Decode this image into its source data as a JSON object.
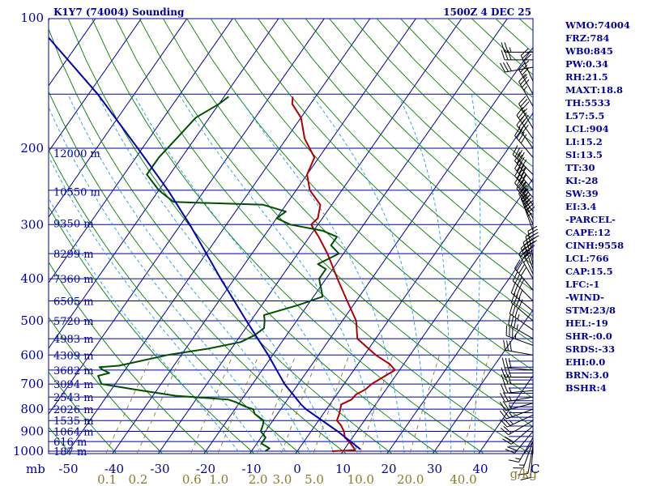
{
  "header": {
    "left_title": "K1Y7 (74004) Sounding",
    "right_title": "1500Z  4 DEC 25"
  },
  "axis": {
    "pressure_unit": "mb",
    "mixing_ratio_unit": "g/kg",
    "temperature_end_label": "C"
  },
  "colors": {
    "frame": "#0000a0",
    "isotherm_isobar": "#0000a0",
    "dry_adiabat": "#008000",
    "moist_adiabat": "#1aa0d8",
    "mixing_ratio": "#8b7a2a",
    "temperature": "#b00000",
    "dewpoint": "#005000",
    "parcel": "#0000b0",
    "wind_barb": "#000000"
  },
  "indices": [
    "WMO:74004",
    "FRZ:784",
    "WB0:845",
    "PW:0.34",
    "RH:21.5",
    "MAXT:18.8",
    "TH:5533",
    "L57:5.5",
    "LCL:904",
    "LI:15.2",
    "SI:13.5",
    "TT:30",
    "KI:-28",
    "SW:39",
    "EI:3.4",
    "-PARCEL-",
    "CAPE:12",
    "CINH:9558",
    "LCL:766",
    "CAP:15.5",
    "LFC:-1",
    "-WIND-",
    "STM:23/8",
    "HEL:-19",
    "SHR-:0.0",
    "SRDS:-33",
    "EHI:0.0",
    "BRN:3.0",
    "BSHR:4"
  ],
  "chart_data": {
    "type": "line",
    "title": "K1Y7 (74004) Sounding",
    "subtitle": "1500Z  4 DEC 25",
    "xlabel": "C",
    "ylabel": "mb",
    "x_axis": "temperature (C), skewed",
    "y_axis": "pressure (mb), log scale",
    "xlim": [
      -50,
      50
    ],
    "ylim": [
      1000,
      100
    ],
    "grid": true,
    "pressure_ticks": [
      100,
      200,
      300,
      400,
      500,
      600,
      700,
      800,
      900,
      1000
    ],
    "temperature_ticks": [
      -50,
      -40,
      -30,
      -20,
      -10,
      0,
      10,
      20,
      30,
      40
    ],
    "temperature_tick_labels": [
      "-50",
      "-40",
      "-30",
      "-20",
      "-10",
      "0",
      "10",
      "20",
      "30",
      "40"
    ],
    "mixing_ratio_values": [
      0.1,
      0.2,
      0.6,
      1.0,
      2.0,
      3.0,
      5.0,
      10.0,
      20.0,
      40.0
    ],
    "mixing_ratio_labels": [
      "0.1",
      "0.2",
      "0.6",
      "1.0",
      "2.0",
      "3.0",
      "5.0",
      "10.0",
      "20.0",
      "40.0"
    ],
    "height_levels": [
      {
        "p": 205,
        "label": "12000 m"
      },
      {
        "p": 252,
        "label": "10550 m"
      },
      {
        "p": 298,
        "label": "9350 m"
      },
      {
        "p": 350,
        "label": "8299 m"
      },
      {
        "p": 400,
        "label": "7360 m"
      },
      {
        "p": 450,
        "label": "6505 m"
      },
      {
        "p": 500,
        "label": "5720 m"
      },
      {
        "p": 550,
        "label": "4983 m"
      },
      {
        "p": 600,
        "label": "4309 m"
      },
      {
        "p": 650,
        "label": "3682 m"
      },
      {
        "p": 700,
        "label": "3094 m"
      },
      {
        "p": 750,
        "label": "2543 m"
      },
      {
        "p": 800,
        "label": "2026 m"
      },
      {
        "p": 850,
        "label": "1535 m"
      },
      {
        "p": 900,
        "label": "1064 m"
      },
      {
        "p": 950,
        "label": "616 m"
      },
      {
        "p": 1000,
        "label": "187 m"
      }
    ],
    "series": [
      {
        "key": "temperature",
        "points": [
          {
            "p": 1000,
            "t": 7.6
          },
          {
            "p": 995,
            "t": 12.5
          },
          {
            "p": 985,
            "t": 12.0
          },
          {
            "p": 960,
            "t": 10.5
          },
          {
            "p": 930,
            "t": 8.3
          },
          {
            "p": 900,
            "t": 7.2
          },
          {
            "p": 870,
            "t": 5.5
          },
          {
            "p": 850,
            "t": 4.0
          },
          {
            "p": 820,
            "t": 3.5
          },
          {
            "p": 800,
            "t": 3.0
          },
          {
            "p": 780,
            "t": 2.5
          },
          {
            "p": 760,
            "t": 4.0
          },
          {
            "p": 740,
            "t": 4.2
          },
          {
            "p": 720,
            "t": 5.5
          },
          {
            "p": 700,
            "t": 6.0
          },
          {
            "p": 650,
            "t": 9.0
          },
          {
            "p": 630,
            "t": 7.0
          },
          {
            "p": 600,
            "t": 2.5
          },
          {
            "p": 550,
            "t": -4.0
          },
          {
            "p": 500,
            "t": -7.0
          },
          {
            "p": 450,
            "t": -12.0
          },
          {
            "p": 400,
            "t": -17.5
          },
          {
            "p": 350,
            "t": -23.5
          },
          {
            "p": 320,
            "t": -28.0
          },
          {
            "p": 300,
            "t": -31.5
          },
          {
            "p": 290,
            "t": -31.0
          },
          {
            "p": 270,
            "t": -32.5
          },
          {
            "p": 250,
            "t": -37.0
          },
          {
            "p": 230,
            "t": -40.0
          },
          {
            "p": 210,
            "t": -41.0
          },
          {
            "p": 190,
            "t": -46.0
          },
          {
            "p": 170,
            "t": -50.0
          },
          {
            "p": 158,
            "t": -54.0
          },
          {
            "p": 152,
            "t": -55.0
          }
        ]
      },
      {
        "key": "dewpoint",
        "points": [
          {
            "p": 1000,
            "t": -7.0
          },
          {
            "p": 985,
            "t": -6.5
          },
          {
            "p": 960,
            "t": -9.0
          },
          {
            "p": 930,
            "t": -9.0
          },
          {
            "p": 900,
            "t": -11.0
          },
          {
            "p": 870,
            "t": -11.5
          },
          {
            "p": 850,
            "t": -12.0
          },
          {
            "p": 820,
            "t": -15.0
          },
          {
            "p": 800,
            "t": -16.0
          },
          {
            "p": 790,
            "t": -18.0
          },
          {
            "p": 770,
            "t": -21.0
          },
          {
            "p": 760,
            "t": -23.0
          },
          {
            "p": 745,
            "t": -35.0
          },
          {
            "p": 720,
            "t": -45.0
          },
          {
            "p": 700,
            "t": -53.0
          },
          {
            "p": 685,
            "t": -54.0
          },
          {
            "p": 670,
            "t": -55.0
          },
          {
            "p": 660,
            "t": -53.0
          },
          {
            "p": 648,
            "t": -55.0
          },
          {
            "p": 640,
            "t": -56.0
          },
          {
            "p": 635,
            "t": -52.0
          },
          {
            "p": 600,
            "t": -43.0
          },
          {
            "p": 580,
            "t": -35.0
          },
          {
            "p": 560,
            "t": -29.0
          },
          {
            "p": 540,
            "t": -27.0
          },
          {
            "p": 520,
            "t": -26.0
          },
          {
            "p": 500,
            "t": -27.0
          },
          {
            "p": 485,
            "t": -28.0
          },
          {
            "p": 460,
            "t": -22.0
          },
          {
            "p": 440,
            "t": -18.0
          },
          {
            "p": 400,
            "t": -21.5
          },
          {
            "p": 380,
            "t": -21.5
          },
          {
            "p": 370,
            "t": -24.0
          },
          {
            "p": 350,
            "t": -21.0
          },
          {
            "p": 335,
            "t": -24.0
          },
          {
            "p": 320,
            "t": -24.0
          },
          {
            "p": 310,
            "t": -28.0
          },
          {
            "p": 300,
            "t": -36.0
          },
          {
            "p": 290,
            "t": -40.0
          },
          {
            "p": 280,
            "t": -39.0
          },
          {
            "p": 270,
            "t": -45.0
          },
          {
            "p": 266,
            "t": -65.0
          },
          {
            "p": 250,
            "t": -70.0
          },
          {
            "p": 230,
            "t": -75.0
          },
          {
            "p": 210,
            "t": -75.0
          },
          {
            "p": 190,
            "t": -74.0
          },
          {
            "p": 170,
            "t": -73.0
          },
          {
            "p": 158,
            "t": -70.0
          },
          {
            "p": 152,
            "t": -69.0
          }
        ]
      },
      {
        "key": "parcel",
        "points": [
          {
            "p": 990,
            "t": 13.5
          },
          {
            "p": 950,
            "t": 10.2
          },
          {
            "p": 900,
            "t": 5.8
          },
          {
            "p": 850,
            "t": 0.8
          },
          {
            "p": 800,
            "t": -4.5
          },
          {
            "p": 780,
            "t": -6.3
          },
          {
            "p": 700,
            "t": -13.0
          },
          {
            "p": 600,
            "t": -21.0
          },
          {
            "p": 500,
            "t": -31.0
          },
          {
            "p": 400,
            "t": -43.0
          },
          {
            "p": 300,
            "t": -58.0
          },
          {
            "p": 250,
            "t": -68.0
          },
          {
            "p": 200,
            "t": -81.0
          },
          {
            "p": 150,
            "t": -98.0
          },
          {
            "p": 110,
            "t": -118.0
          }
        ]
      }
    ],
    "wind_barbs": [
      {
        "p": 990,
        "dir": 185,
        "spd": 10
      },
      {
        "p": 970,
        "dir": 190,
        "spd": 10
      },
      {
        "p": 950,
        "dir": 200,
        "spd": 15
      },
      {
        "p": 930,
        "dir": 210,
        "spd": 15
      },
      {
        "p": 900,
        "dir": 220,
        "spd": 20
      },
      {
        "p": 875,
        "dir": 230,
        "spd": 20
      },
      {
        "p": 850,
        "dir": 240,
        "spd": 20
      },
      {
        "p": 825,
        "dir": 245,
        "spd": 25
      },
      {
        "p": 800,
        "dir": 250,
        "spd": 25
      },
      {
        "p": 775,
        "dir": 255,
        "spd": 25
      },
      {
        "p": 750,
        "dir": 260,
        "spd": 25
      },
      {
        "p": 725,
        "dir": 265,
        "spd": 25
      },
      {
        "p": 700,
        "dir": 270,
        "spd": 30
      },
      {
        "p": 675,
        "dir": 270,
        "spd": 30
      },
      {
        "p": 650,
        "dir": 275,
        "spd": 30
      },
      {
        "p": 600,
        "dir": 280,
        "spd": 30
      },
      {
        "p": 570,
        "dir": 290,
        "spd": 35
      },
      {
        "p": 550,
        "dir": 300,
        "spd": 35
      },
      {
        "p": 525,
        "dir": 305,
        "spd": 35
      },
      {
        "p": 500,
        "dir": 310,
        "spd": 40
      },
      {
        "p": 475,
        "dir": 310,
        "spd": 40
      },
      {
        "p": 450,
        "dir": 315,
        "spd": 40
      },
      {
        "p": 425,
        "dir": 320,
        "spd": 40
      },
      {
        "p": 400,
        "dir": 330,
        "spd": 40
      },
      {
        "p": 390,
        "dir": 335,
        "spd": 40
      },
      {
        "p": 380,
        "dir": 340,
        "spd": 40
      },
      {
        "p": 370,
        "dir": 345,
        "spd": 40
      },
      {
        "p": 360,
        "dir": 350,
        "spd": 45
      },
      {
        "p": 310,
        "dir": 340,
        "spd": 45
      },
      {
        "p": 300,
        "dir": 335,
        "spd": 45
      },
      {
        "p": 290,
        "dir": 330,
        "spd": 45
      },
      {
        "p": 280,
        "dir": 325,
        "spd": 45
      },
      {
        "p": 270,
        "dir": 320,
        "spd": 45
      },
      {
        "p": 260,
        "dir": 320,
        "spd": 45
      },
      {
        "p": 250,
        "dir": 320,
        "spd": 45
      },
      {
        "p": 240,
        "dir": 320,
        "spd": 45
      },
      {
        "p": 230,
        "dir": 315,
        "spd": 40
      },
      {
        "p": 210,
        "dir": 320,
        "spd": 40
      },
      {
        "p": 200,
        "dir": 325,
        "spd": 40
      },
      {
        "p": 190,
        "dir": 325,
        "spd": 40
      },
      {
        "p": 180,
        "dir": 330,
        "spd": 35
      },
      {
        "p": 160,
        "dir": 330,
        "spd": 35
      },
      {
        "p": 150,
        "dir": 330,
        "spd": 35
      },
      {
        "p": 140,
        "dir": 335,
        "spd": 35
      },
      {
        "p": 130,
        "dir": 260,
        "spd": 30
      },
      {
        "p": 125,
        "dir": 270,
        "spd": 30
      },
      {
        "p": 120,
        "dir": 270,
        "spd": 25
      }
    ]
  }
}
